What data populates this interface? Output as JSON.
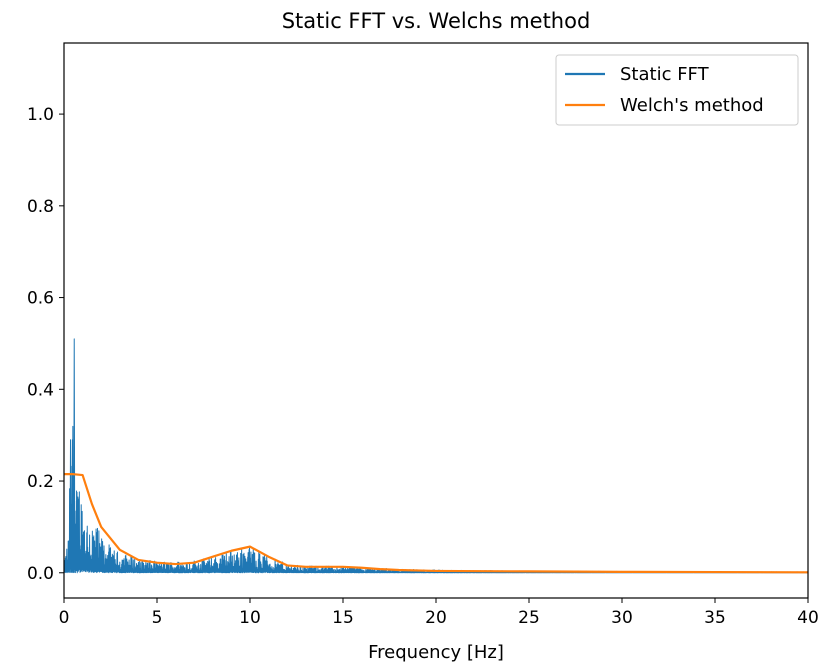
{
  "chart_data": {
    "type": "line",
    "title": "Static FFT vs. Welchs method",
    "xlabel": "Frequency [Hz]",
    "ylabel": "",
    "xlim": [
      0,
      40
    ],
    "ylim": [
      -0.055,
      1.155
    ],
    "xticks": [
      0,
      5,
      10,
      15,
      20,
      25,
      30,
      35,
      40
    ],
    "xtick_labels": [
      "0",
      "5",
      "10",
      "15",
      "20",
      "25",
      "30",
      "35",
      "40"
    ],
    "yticks": [
      0.0,
      0.2,
      0.4,
      0.6,
      0.8,
      1.0
    ],
    "ytick_labels": [
      "0.0",
      "0.2",
      "0.4",
      "0.6",
      "0.8",
      "1.0"
    ],
    "grid": false,
    "legend_position": "upper right",
    "series": [
      {
        "name": "Static FFT",
        "color": "#1f77b4",
        "style": "dense-spectrum",
        "x": [
          0.0,
          0.25,
          0.35,
          0.45,
          0.55,
          0.6,
          0.65,
          0.75,
          0.9,
          1.0,
          1.2,
          1.5,
          1.8,
          2.0,
          2.3,
          2.6,
          3.0,
          3.5,
          4.0,
          5.0,
          6.0,
          7.0,
          8.0,
          9.0,
          9.5,
          10.0,
          10.5,
          11.0,
          12.0,
          13.0,
          14.0,
          15.0,
          16.0,
          17.0,
          18.0,
          20.0,
          22.0,
          25.0,
          30.0,
          35.0,
          40.0
        ],
        "envelope": [
          0.02,
          0.09,
          0.29,
          0.29,
          0.51,
          0.25,
          0.18,
          0.22,
          0.21,
          0.16,
          0.14,
          0.12,
          0.1,
          0.08,
          0.07,
          0.05,
          0.045,
          0.04,
          0.03,
          0.025,
          0.025,
          0.028,
          0.035,
          0.05,
          0.055,
          0.06,
          0.05,
          0.035,
          0.02,
          0.015,
          0.015,
          0.015,
          0.012,
          0.01,
          0.008,
          0.006,
          0.005,
          0.004,
          0.003,
          0.002,
          0.002
        ]
      },
      {
        "name": "Welch's method",
        "color": "#ff7f0e",
        "style": "line",
        "x": [
          0.0,
          0.5,
          1.0,
          1.5,
          2.0,
          3.0,
          4.0,
          5.0,
          6.0,
          7.0,
          8.0,
          9.0,
          10.0,
          11.0,
          12.0,
          13.0,
          14.0,
          15.0,
          16.0,
          17.0,
          18.0,
          20.0,
          25.0,
          30.0,
          35.0,
          40.0
        ],
        "values": [
          0.215,
          0.215,
          0.213,
          0.15,
          0.1,
          0.05,
          0.028,
          0.022,
          0.019,
          0.022,
          0.035,
          0.048,
          0.057,
          0.035,
          0.016,
          0.013,
          0.013,
          0.013,
          0.011,
          0.008,
          0.006,
          0.004,
          0.003,
          0.002,
          0.0015,
          0.001
        ]
      }
    ]
  }
}
